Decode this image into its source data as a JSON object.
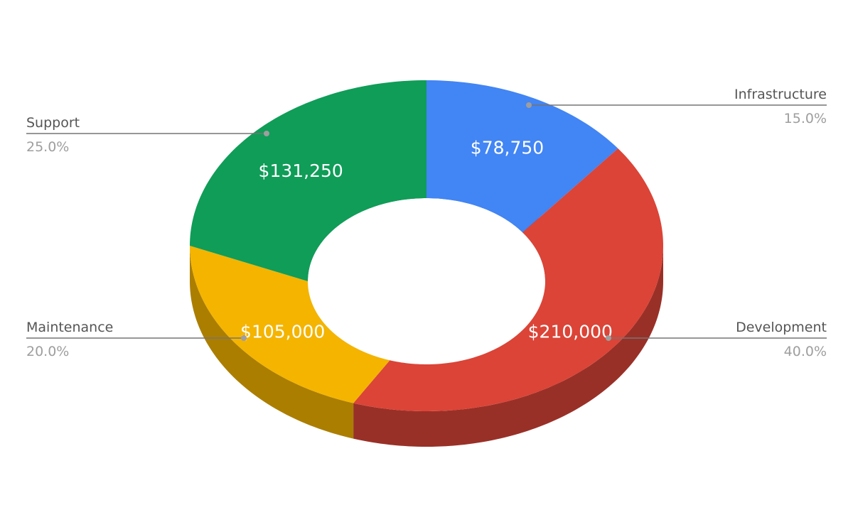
{
  "chart_data": {
    "type": "pie",
    "style": "3d-donut",
    "slices": [
      {
        "label": "Infrastructure",
        "value": 78750,
        "display_value": "$78,750",
        "percent": "15.0%",
        "color": "#4285f4"
      },
      {
        "label": "Development",
        "value": 210000,
        "display_value": "$210,000",
        "percent": "40.0%",
        "color": "#db4437"
      },
      {
        "label": "Maintenance",
        "value": 105000,
        "display_value": "$105,000",
        "percent": "20.0%",
        "color": "#f4b400"
      },
      {
        "label": "Support",
        "value": 131250,
        "display_value": "$131,250",
        "percent": "25.0%",
        "color": "#0f9d58"
      }
    ]
  }
}
